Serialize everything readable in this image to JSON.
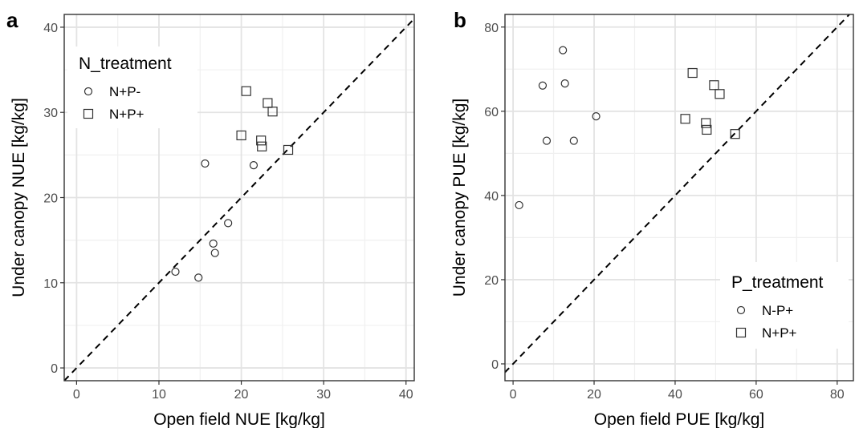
{
  "chart_data": [
    {
      "type": "scatter",
      "panel_label": "a",
      "xlabel": "Open field NUE [kg/kg]",
      "ylabel": "Under canopy NUE [kg/kg]",
      "xlim": [
        -1.5,
        41
      ],
      "ylim": [
        -1.5,
        41.5
      ],
      "xticks": [
        0,
        10,
        20,
        30,
        40
      ],
      "yticks": [
        0,
        10,
        20,
        30,
        40
      ],
      "grid": true,
      "reference_line": "1:1 dashed",
      "legend": {
        "title": "N_treatment",
        "position": "top-left"
      },
      "series": [
        {
          "name": "N+P-",
          "marker": "circle",
          "points": [
            [
              12.0,
              11.3
            ],
            [
              14.8,
              10.6
            ],
            [
              15.6,
              24.0
            ],
            [
              16.6,
              14.6
            ],
            [
              16.8,
              13.5
            ],
            [
              18.4,
              17.0
            ],
            [
              21.5,
              23.8
            ]
          ]
        },
        {
          "name": "N+P+",
          "marker": "square",
          "points": [
            [
              20.0,
              27.3
            ],
            [
              20.6,
              32.5
            ],
            [
              22.4,
              26.7
            ],
            [
              22.5,
              26.0
            ],
            [
              23.2,
              31.1
            ],
            [
              23.8,
              30.1
            ],
            [
              25.7,
              25.6
            ]
          ]
        }
      ]
    },
    {
      "type": "scatter",
      "panel_label": "b",
      "xlabel": "Open field PUE [kg/kg]",
      "ylabel": "Under canopy PUE [kg/kg]",
      "xlim": [
        -2,
        84
      ],
      "ylim": [
        -4,
        83
      ],
      "xticks": [
        0,
        20,
        40,
        60,
        80
      ],
      "yticks": [
        0,
        20,
        40,
        60,
        80
      ],
      "grid": true,
      "reference_line": "1:1 dashed",
      "legend": {
        "title": "P_treatment",
        "position": "bottom-right"
      },
      "series": [
        {
          "name": "N-P+",
          "marker": "circle",
          "points": [
            [
              1.5,
              37.7
            ],
            [
              7.3,
              66.1
            ],
            [
              8.3,
              53.0
            ],
            [
              12.3,
              74.5
            ],
            [
              12.8,
              66.6
            ],
            [
              15.0,
              53.0
            ],
            [
              20.5,
              58.8
            ]
          ]
        },
        {
          "name": "N+P+",
          "marker": "square",
          "points": [
            [
              42.5,
              58.2
            ],
            [
              44.3,
              69.1
            ],
            [
              47.6,
              57.2
            ],
            [
              47.8,
              55.6
            ],
            [
              49.6,
              66.2
            ],
            [
              51.0,
              64.1
            ],
            [
              54.8,
              54.6
            ]
          ]
        }
      ]
    }
  ]
}
